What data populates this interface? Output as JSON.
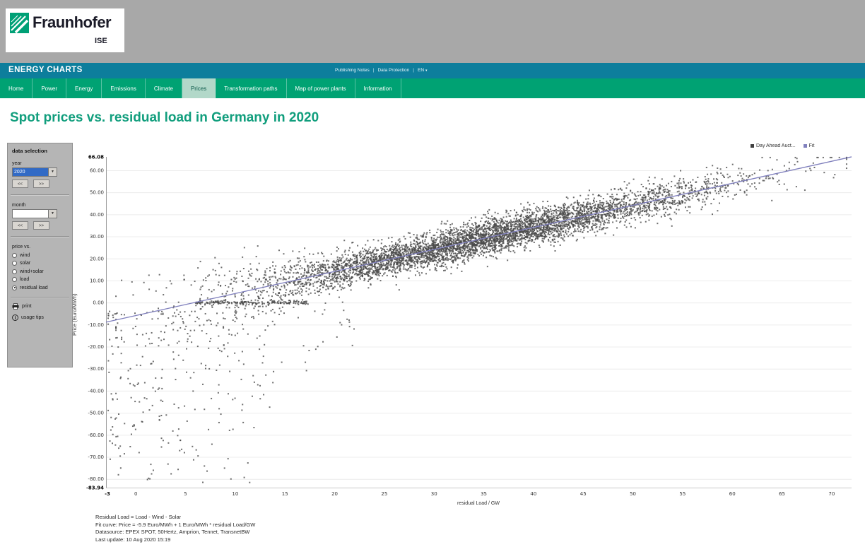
{
  "header": {
    "brand": {
      "name": "Fraunhofer",
      "sub": "ISE"
    },
    "banner": {
      "title": "ENERGY CHARTS",
      "links": [
        "Publishing Notes",
        "Data Protection"
      ],
      "separator": "|",
      "language": "EN",
      "caret": "▾"
    },
    "nav": {
      "items": [
        "Home",
        "Power",
        "Energy",
        "Emissions",
        "Climate",
        "Prices",
        "Transformation paths",
        "Map of power plants",
        "Information"
      ],
      "active": "Prices"
    }
  },
  "page": {
    "title": "Spot prices vs. residual load in Germany in 2020"
  },
  "sidebar": {
    "title": "data selection",
    "year": {
      "label": "year",
      "value": "2020",
      "prev": "<<",
      "next": ">>",
      "dropdown_arrow": "▼"
    },
    "month": {
      "label": "month",
      "value": "",
      "prev": "<<",
      "next": ">>",
      "dropdown_arrow": "▼"
    },
    "price_vs": {
      "label": "price vs.",
      "options": [
        "wind",
        "solar",
        "wind+solar",
        "load",
        "residual load"
      ],
      "selected": "residual load"
    },
    "actions": {
      "print": "print",
      "usage_tips": "usage tips"
    }
  },
  "colors": {
    "banner_teal": "#0d7e9c",
    "nav_green": "#00a273",
    "nav_active_bg": "#b2d8c9",
    "title_green": "#119e7d",
    "selection_blue": "#316ac5",
    "scatter_gray": "#4a4a4a",
    "fit_purple": "#8080bd"
  },
  "chart_data": {
    "type": "scatter",
    "title": "Spot prices vs. residual load in Germany in 2020",
    "xlabel": "residual Load / GW",
    "ylabel": "Price (Euro/MWh)",
    "xlim": [
      -3,
      72
    ],
    "ylim": [
      -83.94,
      66.08
    ],
    "x_ticks": [
      0,
      5,
      10,
      15,
      20,
      25,
      30,
      35,
      40,
      45,
      50,
      55,
      60,
      65,
      70
    ],
    "y_ticks": [
      -80,
      -70,
      -60,
      -50,
      -40,
      -30,
      -20,
      -10,
      0,
      10,
      20,
      30,
      40,
      50,
      60
    ],
    "extreme_labels": {
      "y_max": "66.08",
      "y_min": "-83.94",
      "x_min": "-3"
    },
    "grid": "horizontal",
    "legend": {
      "position": "top-right",
      "entries": [
        {
          "label": "Day Ahead Auct...",
          "color": "#3f3f3f"
        },
        {
          "label": "Fit",
          "color": "#8080bd"
        }
      ]
    },
    "series": [
      {
        "name": "Day Ahead Auction",
        "kind": "scatter-points",
        "color": "#4a4a4a",
        "marker_px": 2,
        "generation": {
          "seed": 42,
          "main_cloud": {
            "count": 5600,
            "x_mean": 34,
            "x_sd": 12.5,
            "x_min": -2,
            "x_max": 71.5,
            "noise_sd_base": 4.5,
            "wide_below_x": 18,
            "wide_factor": 0.7
          },
          "negative_tail": {
            "count": 240,
            "x_start": -2.8,
            "x_span": 16,
            "y_start": -4,
            "y_span": -78
          },
          "zero_price_band": {
            "count": 160,
            "x_start": 6,
            "x_span": 11.5,
            "y_sd": 0.4
          }
        }
      },
      {
        "name": "Fit",
        "kind": "line",
        "color": "#8080bd",
        "intercept": -5.9,
        "slope": 1
      }
    ],
    "fit_equation": "Price = -5.9 Euro/MWh + 1 Euro/MWh * residual Load/GW"
  },
  "footer": {
    "lines": [
      "Residual Load = Load - Wind - Solar",
      "Fit curve: Price = -5.9 Euro/MWh + 1 Euro/MWh * residual Load/GW",
      "Datasource: EPEX SPOT, 50Hertz, Amprion, Tennet, TransnetBW",
      "Last update: 10 Aug 2020 15:19"
    ]
  }
}
